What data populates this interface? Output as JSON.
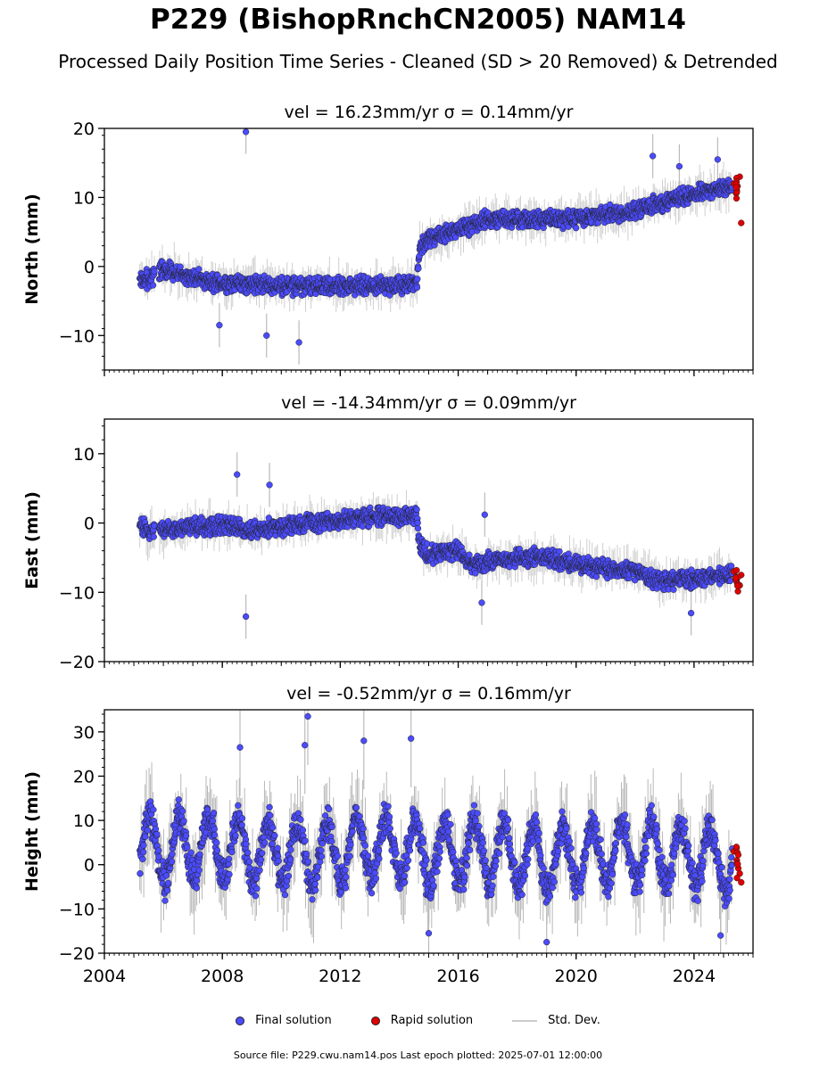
{
  "page": {
    "title": "P229 (BishopRnchCN2005) NAM14",
    "subtitle": "Processed Daily Position Time Series - Cleaned (SD > 20 Removed) & Detrended",
    "footer": "Source file: P229.cwu.nam14.pos  Last epoch plotted: 2025-07-01 12:00:00"
  },
  "legend": {
    "final_label": "Final solution",
    "rapid_label": "Rapid solution",
    "std_label": "Std. Dev."
  },
  "colors": {
    "final": "#4b4bff",
    "rapid": "#e00000",
    "std": "#bbbbbb",
    "marker_edge": "#222222"
  },
  "chart_data": [
    {
      "type": "scatter",
      "title": "vel = 16.23mm/yr   σ = 0.14mm/yr",
      "ylabel": "North (mm)",
      "xlim": [
        2004,
        2026
      ],
      "ylim": [
        -15,
        20
      ],
      "yticks": [
        -10,
        0,
        10,
        20
      ],
      "ytick_labels": [
        "−10",
        "0",
        "10",
        "20"
      ],
      "xticks": [
        2004,
        2008,
        2012,
        2016,
        2020,
        2024
      ],
      "show_xtick_labels": false,
      "grid": false,
      "x_start": 2005.2,
      "x_end": 2025.3,
      "series": [
        {
          "name": "Final solution",
          "x": [
            2005.2,
            2005.5,
            2005.8,
            2006.2,
            2007.0,
            2008.0,
            2009.0,
            2010.0,
            2011.0,
            2012.0,
            2013.0,
            2014.0,
            2014.6,
            2014.7,
            2015.0,
            2015.5,
            2016.0,
            2017.0,
            2018.0,
            2019.0,
            2020.0,
            2021.0,
            2022.0,
            2023.0,
            2024.0,
            2025.2
          ],
          "y": [
            -1.5,
            -2.0,
            -0.5,
            -0.5,
            -1.5,
            -2.5,
            -2.5,
            -2.8,
            -2.8,
            -2.8,
            -2.8,
            -2.6,
            -2.2,
            2.5,
            4.0,
            4.5,
            5.5,
            6.8,
            6.8,
            6.8,
            7.0,
            7.5,
            8.0,
            9.5,
            10.5,
            11.5
          ]
        },
        {
          "name": "Rapid solution",
          "x": [
            2025.35,
            2025.45,
            2025.55,
            2025.6
          ],
          "y": [
            12.0,
            11.0,
            13.0,
            6.3
          ]
        }
      ],
      "outliers": [
        {
          "x": 2008.8,
          "y": 19.5
        },
        {
          "x": 2010.6,
          "y": -11.0
        },
        {
          "x": 2009.5,
          "y": -10.0
        },
        {
          "x": 2007.9,
          "y": -8.5
        },
        {
          "x": 2022.6,
          "y": 16.0
        },
        {
          "x": 2023.5,
          "y": 14.5
        },
        {
          "x": 2024.8,
          "y": 15.5
        }
      ]
    },
    {
      "type": "scatter",
      "title": "vel = -14.34mm/yr   σ = 0.09mm/yr",
      "ylabel": "East (mm)",
      "xlim": [
        2004,
        2026
      ],
      "ylim": [
        -20,
        15
      ],
      "yticks": [
        -20,
        -10,
        0,
        10
      ],
      "ytick_labels": [
        "−20",
        "−10",
        "0",
        "10"
      ],
      "xticks": [
        2004,
        2008,
        2012,
        2016,
        2020,
        2024
      ],
      "show_xtick_labels": false,
      "grid": false,
      "x_start": 2005.2,
      "x_end": 2025.3,
      "series": [
        {
          "name": "Final solution",
          "x": [
            2005.2,
            2005.5,
            2005.8,
            2006.2,
            2007.0,
            2008.0,
            2009.0,
            2010.0,
            2011.0,
            2012.0,
            2013.0,
            2014.0,
            2014.6,
            2014.7,
            2015.0,
            2016.0,
            2016.5,
            2017.0,
            2018.0,
            2019.0,
            2020.0,
            2021.0,
            2022.0,
            2023.0,
            2024.0,
            2025.2
          ],
          "y": [
            0.0,
            -1.5,
            -1.0,
            -1.0,
            -0.5,
            -0.3,
            -1.0,
            -0.5,
            0.0,
            0.5,
            1.0,
            0.8,
            1.0,
            -3.5,
            -4.5,
            -4.0,
            -6.0,
            -5.5,
            -5.0,
            -5.0,
            -6.0,
            -6.5,
            -7.0,
            -8.5,
            -8.0,
            -7.5
          ]
        },
        {
          "name": "Rapid solution",
          "x": [
            2025.35,
            2025.45,
            2025.55,
            2025.6
          ],
          "y": [
            -7.0,
            -8.5,
            -9.0,
            -7.5
          ]
        }
      ],
      "outliers": [
        {
          "x": 2008.5,
          "y": 7.0
        },
        {
          "x": 2009.6,
          "y": 5.5
        },
        {
          "x": 2008.8,
          "y": -13.5
        },
        {
          "x": 2016.8,
          "y": -11.5
        },
        {
          "x": 2023.9,
          "y": -13.0
        },
        {
          "x": 2016.9,
          "y": 1.2
        }
      ]
    },
    {
      "type": "scatter",
      "title": "vel = -0.52mm/yr   σ = 0.16mm/yr",
      "ylabel": "Height (mm)",
      "xlim": [
        2004,
        2026
      ],
      "ylim": [
        -20,
        35
      ],
      "yticks": [
        -20,
        -10,
        0,
        10,
        20,
        30
      ],
      "ytick_labels": [
        "−20",
        "−10",
        "0",
        "10",
        "20",
        "30"
      ],
      "xticks": [
        2004,
        2008,
        2012,
        2016,
        2020,
        2024
      ],
      "xtick_labels": [
        "2004",
        "2008",
        "2012",
        "2016",
        "2020",
        "2024"
      ],
      "show_xtick_labels": true,
      "grid": false,
      "x_start": 2005.2,
      "x_end": 2025.3,
      "seasonal_amplitude": 7,
      "series": [
        {
          "name": "Final solution",
          "x": [
            2005.2,
            2006.0,
            2007.0,
            2008.0,
            2009.0,
            2010.0,
            2011.0,
            2012.0,
            2013.0,
            2014.0,
            2015.0,
            2016.0,
            2017.0,
            2018.0,
            2019.0,
            2020.0,
            2021.0,
            2022.0,
            2023.0,
            2024.0,
            2025.2
          ],
          "y": [
            4,
            3,
            4,
            4,
            3,
            3,
            2,
            3,
            4,
            4,
            2,
            3,
            3,
            2,
            1,
            2,
            3,
            3,
            2,
            2,
            1
          ]
        },
        {
          "name": "Rapid solution",
          "x": [
            2025.35,
            2025.45,
            2025.55,
            2025.6
          ],
          "y": [
            3.0,
            1.0,
            -2.0,
            -4.0
          ]
        }
      ],
      "outliers": [
        {
          "x": 2010.9,
          "y": 33.5
        },
        {
          "x": 2010.8,
          "y": 27.0
        },
        {
          "x": 2012.8,
          "y": 28.0
        },
        {
          "x": 2014.4,
          "y": 28.5
        },
        {
          "x": 2008.6,
          "y": 26.5
        },
        {
          "x": 2019.0,
          "y": -17.5
        },
        {
          "x": 2024.9,
          "y": -16.0
        },
        {
          "x": 2015.0,
          "y": -15.5
        }
      ]
    }
  ]
}
